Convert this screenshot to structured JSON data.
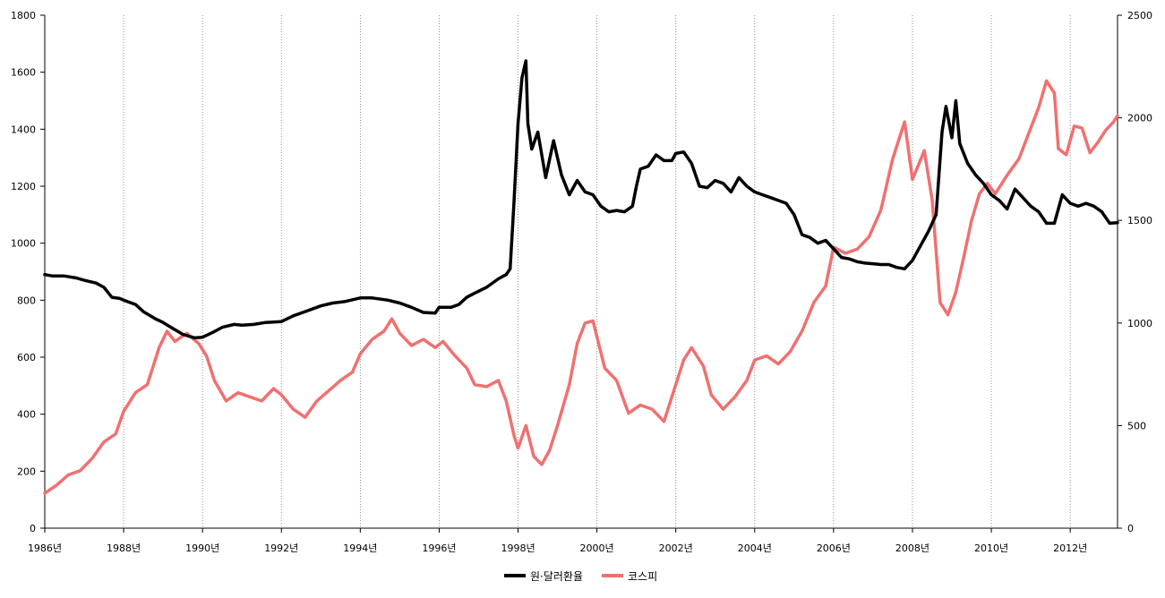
{
  "chart_data": {
    "type": "line",
    "title": "",
    "xlabel": "",
    "ylabel": "",
    "y2label": "",
    "x_range": [
      1986.0,
      2013.2
    ],
    "ylim": [
      0,
      1800
    ],
    "y2lim": [
      0,
      2500
    ],
    "x_ticks": [
      "1986년",
      "1988년",
      "1990년",
      "1992년",
      "1994년",
      "1996년",
      "1998년",
      "2000년",
      "2002년",
      "2004년",
      "2006년",
      "2008년",
      "2010년",
      "2012년"
    ],
    "y_ticks": [
      "0",
      "200",
      "400",
      "600",
      "800",
      "1000",
      "1200",
      "1400",
      "1600",
      "1800"
    ],
    "y2_ticks": [
      "0",
      "500",
      "1000",
      "1500",
      "2000",
      "2500"
    ],
    "grid": "vertical dotted lines at each x tick",
    "legend_position": "bottom-center",
    "series": [
      {
        "name": "원·달러환율",
        "axis": "left",
        "color": "#000000",
        "points": [
          [
            1986.0,
            890
          ],
          [
            1986.2,
            885
          ],
          [
            1986.5,
            885
          ],
          [
            1986.8,
            878
          ],
          [
            1987.0,
            870
          ],
          [
            1987.3,
            860
          ],
          [
            1987.5,
            845
          ],
          [
            1987.7,
            810
          ],
          [
            1987.9,
            806
          ],
          [
            1988.0,
            800
          ],
          [
            1988.3,
            785
          ],
          [
            1988.5,
            760
          ],
          [
            1988.8,
            735
          ],
          [
            1989.0,
            722
          ],
          [
            1989.2,
            705
          ],
          [
            1989.5,
            680
          ],
          [
            1989.8,
            668
          ],
          [
            1990.0,
            670
          ],
          [
            1990.3,
            690
          ],
          [
            1990.5,
            705
          ],
          [
            1990.8,
            715
          ],
          [
            1991.0,
            712
          ],
          [
            1991.3,
            715
          ],
          [
            1991.6,
            722
          ],
          [
            1992.0,
            725
          ],
          [
            1992.3,
            745
          ],
          [
            1992.6,
            760
          ],
          [
            1993.0,
            780
          ],
          [
            1993.3,
            790
          ],
          [
            1993.6,
            795
          ],
          [
            1994.0,
            808
          ],
          [
            1994.3,
            808
          ],
          [
            1994.7,
            800
          ],
          [
            1995.0,
            790
          ],
          [
            1995.3,
            775
          ],
          [
            1995.6,
            757
          ],
          [
            1995.9,
            755
          ],
          [
            1996.0,
            775
          ],
          [
            1996.3,
            775
          ],
          [
            1996.5,
            785
          ],
          [
            1996.7,
            810
          ],
          [
            1996.9,
            825
          ],
          [
            1997.2,
            845
          ],
          [
            1997.5,
            875
          ],
          [
            1997.7,
            890
          ],
          [
            1997.8,
            910
          ],
          [
            1997.9,
            1150
          ],
          [
            1998.0,
            1420
          ],
          [
            1998.1,
            1580
          ],
          [
            1998.2,
            1640
          ],
          [
            1998.25,
            1420
          ],
          [
            1998.35,
            1330
          ],
          [
            1998.5,
            1390
          ],
          [
            1998.7,
            1230
          ],
          [
            1998.9,
            1360
          ],
          [
            1999.1,
            1240
          ],
          [
            1999.3,
            1170
          ],
          [
            1999.5,
            1220
          ],
          [
            1999.7,
            1180
          ],
          [
            1999.9,
            1170
          ],
          [
            2000.1,
            1130
          ],
          [
            2000.3,
            1110
          ],
          [
            2000.5,
            1115
          ],
          [
            2000.7,
            1110
          ],
          [
            2000.9,
            1130
          ],
          [
            2001.0,
            1200
          ],
          [
            2001.1,
            1260
          ],
          [
            2001.3,
            1270
          ],
          [
            2001.5,
            1310
          ],
          [
            2001.7,
            1290
          ],
          [
            2001.9,
            1290
          ],
          [
            2002.0,
            1315
          ],
          [
            2002.2,
            1320
          ],
          [
            2002.4,
            1280
          ],
          [
            2002.6,
            1200
          ],
          [
            2002.8,
            1195
          ],
          [
            2003.0,
            1220
          ],
          [
            2003.2,
            1210
          ],
          [
            2003.4,
            1180
          ],
          [
            2003.6,
            1230
          ],
          [
            2003.8,
            1200
          ],
          [
            2004.0,
            1180
          ],
          [
            2004.2,
            1170
          ],
          [
            2004.4,
            1160
          ],
          [
            2004.6,
            1150
          ],
          [
            2004.8,
            1140
          ],
          [
            2005.0,
            1100
          ],
          [
            2005.2,
            1030
          ],
          [
            2005.4,
            1020
          ],
          [
            2005.6,
            1000
          ],
          [
            2005.8,
            1010
          ],
          [
            2006.0,
            980
          ],
          [
            2006.2,
            950
          ],
          [
            2006.4,
            945
          ],
          [
            2006.6,
            935
          ],
          [
            2006.8,
            930
          ],
          [
            2007.0,
            928
          ],
          [
            2007.2,
            925
          ],
          [
            2007.4,
            925
          ],
          [
            2007.6,
            915
          ],
          [
            2007.8,
            910
          ],
          [
            2008.0,
            940
          ],
          [
            2008.2,
            990
          ],
          [
            2008.4,
            1040
          ],
          [
            2008.6,
            1100
          ],
          [
            2008.75,
            1390
          ],
          [
            2008.85,
            1480
          ],
          [
            2009.0,
            1370
          ],
          [
            2009.1,
            1500
          ],
          [
            2009.2,
            1350
          ],
          [
            2009.4,
            1280
          ],
          [
            2009.6,
            1240
          ],
          [
            2009.8,
            1210
          ],
          [
            2010.0,
            1170
          ],
          [
            2010.2,
            1150
          ],
          [
            2010.4,
            1120
          ],
          [
            2010.6,
            1190
          ],
          [
            2010.8,
            1160
          ],
          [
            2011.0,
            1130
          ],
          [
            2011.2,
            1110
          ],
          [
            2011.4,
            1070
          ],
          [
            2011.6,
            1070
          ],
          [
            2011.8,
            1170
          ],
          [
            2012.0,
            1140
          ],
          [
            2012.2,
            1130
          ],
          [
            2012.4,
            1140
          ],
          [
            2012.6,
            1130
          ],
          [
            2012.8,
            1110
          ],
          [
            2013.0,
            1070
          ],
          [
            2013.2,
            1072
          ]
        ]
      },
      {
        "name": "코스피",
        "axis": "right",
        "color": "#f07070",
        "points": [
          [
            1986.0,
            170
          ],
          [
            1986.3,
            210
          ],
          [
            1986.6,
            260
          ],
          [
            1986.9,
            280
          ],
          [
            1987.2,
            340
          ],
          [
            1987.5,
            420
          ],
          [
            1987.8,
            460
          ],
          [
            1988.0,
            570
          ],
          [
            1988.3,
            660
          ],
          [
            1988.6,
            700
          ],
          [
            1988.9,
            880
          ],
          [
            1989.1,
            960
          ],
          [
            1989.3,
            910
          ],
          [
            1989.6,
            950
          ],
          [
            1989.9,
            900
          ],
          [
            1990.1,
            840
          ],
          [
            1990.3,
            720
          ],
          [
            1990.6,
            620
          ],
          [
            1990.9,
            660
          ],
          [
            1991.2,
            640
          ],
          [
            1991.5,
            620
          ],
          [
            1991.8,
            680
          ],
          [
            1992.0,
            650
          ],
          [
            1992.3,
            580
          ],
          [
            1992.6,
            540
          ],
          [
            1992.9,
            620
          ],
          [
            1993.2,
            670
          ],
          [
            1993.5,
            720
          ],
          [
            1993.8,
            760
          ],
          [
            1994.0,
            850
          ],
          [
            1994.3,
            920
          ],
          [
            1994.6,
            960
          ],
          [
            1994.8,
            1020
          ],
          [
            1995.0,
            950
          ],
          [
            1995.3,
            890
          ],
          [
            1995.6,
            920
          ],
          [
            1995.9,
            880
          ],
          [
            1996.1,
            910
          ],
          [
            1996.4,
            840
          ],
          [
            1996.7,
            780
          ],
          [
            1996.9,
            700
          ],
          [
            1997.2,
            690
          ],
          [
            1997.5,
            720
          ],
          [
            1997.7,
            620
          ],
          [
            1997.9,
            450
          ],
          [
            1998.0,
            390
          ],
          [
            1998.2,
            500
          ],
          [
            1998.4,
            350
          ],
          [
            1998.6,
            310
          ],
          [
            1998.8,
            380
          ],
          [
            1999.0,
            500
          ],
          [
            1999.3,
            700
          ],
          [
            1999.5,
            900
          ],
          [
            1999.7,
            1000
          ],
          [
            1999.9,
            1010
          ],
          [
            2000.2,
            780
          ],
          [
            2000.5,
            720
          ],
          [
            2000.8,
            560
          ],
          [
            2001.1,
            600
          ],
          [
            2001.4,
            580
          ],
          [
            2001.7,
            520
          ],
          [
            2002.0,
            700
          ],
          [
            2002.2,
            820
          ],
          [
            2002.4,
            880
          ],
          [
            2002.7,
            790
          ],
          [
            2002.9,
            650
          ],
          [
            2003.2,
            580
          ],
          [
            2003.5,
            640
          ],
          [
            2003.8,
            720
          ],
          [
            2004.0,
            820
          ],
          [
            2004.3,
            840
          ],
          [
            2004.6,
            800
          ],
          [
            2004.9,
            860
          ],
          [
            2005.2,
            960
          ],
          [
            2005.5,
            1100
          ],
          [
            2005.8,
            1180
          ],
          [
            2006.0,
            1370
          ],
          [
            2006.3,
            1340
          ],
          [
            2006.6,
            1360
          ],
          [
            2006.9,
            1420
          ],
          [
            2007.2,
            1550
          ],
          [
            2007.5,
            1800
          ],
          [
            2007.8,
            1980
          ],
          [
            2008.0,
            1700
          ],
          [
            2008.3,
            1840
          ],
          [
            2008.5,
            1600
          ],
          [
            2008.7,
            1100
          ],
          [
            2008.9,
            1040
          ],
          [
            2009.1,
            1150
          ],
          [
            2009.3,
            1320
          ],
          [
            2009.5,
            1500
          ],
          [
            2009.7,
            1630
          ],
          [
            2009.9,
            1680
          ],
          [
            2010.1,
            1630
          ],
          [
            2010.4,
            1720
          ],
          [
            2010.7,
            1800
          ],
          [
            2010.9,
            1900
          ],
          [
            2011.2,
            2050
          ],
          [
            2011.4,
            2180
          ],
          [
            2011.6,
            2120
          ],
          [
            2011.7,
            1850
          ],
          [
            2011.9,
            1820
          ],
          [
            2012.1,
            1960
          ],
          [
            2012.3,
            1950
          ],
          [
            2012.5,
            1830
          ],
          [
            2012.7,
            1880
          ],
          [
            2012.9,
            1940
          ],
          [
            2013.1,
            1980
          ],
          [
            2013.2,
            2010
          ]
        ]
      }
    ]
  }
}
